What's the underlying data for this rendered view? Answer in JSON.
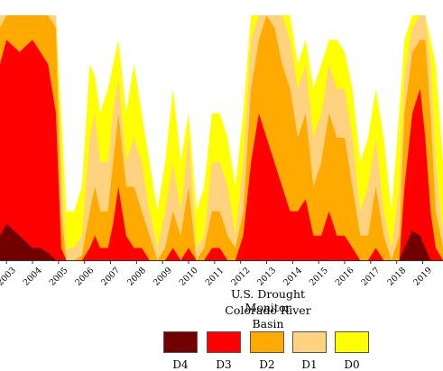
{
  "chart_data": {
    "type": "area",
    "title": "U.S. Drought Monitor",
    "subtitle": "Colorado River Basin",
    "stacked": false,
    "xlim": [
      2002.75,
      2019.78
    ],
    "ylim": [
      0,
      100
    ],
    "x_ticks": [
      "2003",
      "2004",
      "2005",
      "2006",
      "2007",
      "2008",
      "2009",
      "2010",
      "2011",
      "2012",
      "2013",
      "2014",
      "2015",
      "2016",
      "2017",
      "2018",
      "2019"
    ],
    "grid": false,
    "legend_position": "bottom",
    "x": [
      2002.75,
      2003.0,
      2003.5,
      2004.0,
      2004.3,
      2004.6,
      2004.9,
      2005.1,
      2005.3,
      2005.6,
      2005.9,
      2006.2,
      2006.4,
      2006.6,
      2006.9,
      2007.1,
      2007.3,
      2007.6,
      2007.9,
      2008.2,
      2008.5,
      2008.8,
      2009.1,
      2009.4,
      2009.7,
      2010.0,
      2010.3,
      2010.6,
      2010.9,
      2011.2,
      2011.5,
      2011.8,
      2012.1,
      2012.4,
      2012.7,
      2013.0,
      2013.3,
      2013.6,
      2013.9,
      2014.2,
      2014.5,
      2014.8,
      2015.1,
      2015.4,
      2015.7,
      2016.0,
      2016.3,
      2016.6,
      2016.9,
      2017.2,
      2017.5,
      2017.8,
      2018.1,
      2018.3,
      2018.6,
      2018.9,
      2019.1,
      2019.3,
      2019.5,
      2019.78
    ],
    "series": [
      {
        "name": "D0",
        "color": "#ffff00",
        "values": [
          100,
          100,
          100,
          100,
          100,
          100,
          100,
          60,
          20,
          20,
          30,
          80,
          75,
          60,
          70,
          80,
          90,
          60,
          80,
          60,
          40,
          20,
          40,
          70,
          40,
          60,
          20,
          30,
          60,
          60,
          50,
          30,
          60,
          100,
          100,
          100,
          100,
          100,
          100,
          80,
          90,
          70,
          80,
          90,
          90,
          85,
          70,
          40,
          50,
          70,
          50,
          20,
          60,
          90,
          100,
          100,
          100,
          90,
          80,
          40
        ]
      },
      {
        "name": "D1",
        "color": "#ffd280",
        "values": [
          100,
          100,
          100,
          100,
          100,
          100,
          100,
          40,
          5,
          5,
          10,
          50,
          60,
          40,
          40,
          60,
          75,
          40,
          50,
          40,
          20,
          5,
          20,
          40,
          20,
          50,
          5,
          10,
          40,
          40,
          30,
          10,
          40,
          90,
          100,
          100,
          100,
          100,
          90,
          70,
          80,
          50,
          60,
          80,
          70,
          70,
          50,
          20,
          30,
          50,
          20,
          5,
          30,
          75,
          95,
          100,
          100,
          80,
          40,
          10
        ]
      },
      {
        "name": "D2",
        "color": "#ffaa00",
        "values": [
          95,
          100,
          100,
          100,
          100,
          100,
          95,
          20,
          0,
          0,
          2,
          20,
          30,
          20,
          20,
          40,
          60,
          30,
          30,
          20,
          10,
          0,
          5,
          20,
          10,
          30,
          0,
          5,
          20,
          20,
          10,
          5,
          20,
          70,
          90,
          100,
          95,
          80,
          70,
          50,
          60,
          30,
          40,
          60,
          50,
          50,
          30,
          10,
          10,
          30,
          10,
          0,
          10,
          60,
          85,
          90,
          90,
          60,
          20,
          5
        ]
      },
      {
        "name": "D3",
        "color": "#ff0000",
        "values": [
          80,
          90,
          85,
          90,
          85,
          80,
          60,
          5,
          0,
          0,
          0,
          5,
          10,
          5,
          5,
          15,
          30,
          10,
          5,
          5,
          0,
          0,
          0,
          5,
          0,
          5,
          0,
          0,
          5,
          5,
          0,
          0,
          10,
          40,
          60,
          50,
          40,
          30,
          20,
          20,
          25,
          10,
          10,
          20,
          10,
          10,
          5,
          0,
          0,
          5,
          0,
          0,
          0,
          30,
          60,
          70,
          50,
          20,
          5,
          0
        ]
      },
      {
        "name": "D4",
        "color": "#730000",
        "values": [
          10,
          15,
          10,
          5,
          5,
          3,
          0,
          0,
          0,
          0,
          0,
          0,
          0,
          0,
          0,
          0,
          0,
          0,
          0,
          0,
          0,
          0,
          0,
          0,
          0,
          0,
          0,
          0,
          0,
          0,
          0,
          0,
          0,
          0,
          0,
          0,
          0,
          0,
          0,
          0,
          0,
          0,
          0,
          0,
          0,
          0,
          0,
          0,
          0,
          0,
          0,
          0,
          0,
          5,
          12,
          10,
          5,
          0,
          0,
          0
        ]
      }
    ]
  },
  "legend": [
    {
      "key": "D4",
      "label": "D4",
      "color": "#730000"
    },
    {
      "key": "D3",
      "label": "D3",
      "color": "#ff0000"
    },
    {
      "key": "D2",
      "label": "D2",
      "color": "#ffaa00"
    },
    {
      "key": "D1",
      "label": "D1",
      "color": "#ffd280"
    },
    {
      "key": "D0",
      "label": "D0",
      "color": "#ffff00"
    }
  ]
}
